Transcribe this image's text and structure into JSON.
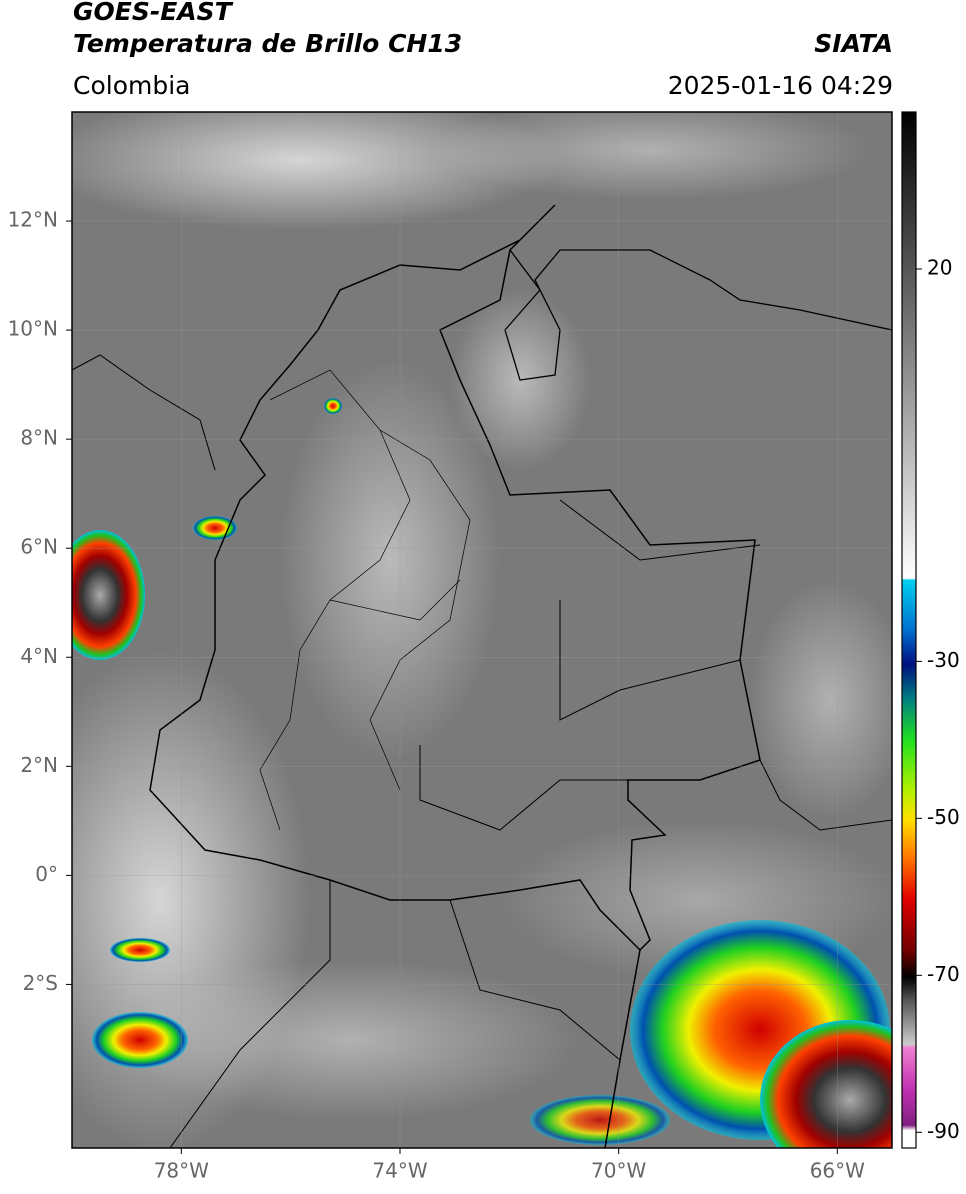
{
  "header": {
    "title": "GOES-EAST",
    "subtitle": "Temperatura de Brillo CH13",
    "source": "SIATA",
    "region": "Colombia",
    "datetime": "2025-01-16 04:29"
  },
  "map": {
    "xlim": [
      -80,
      -65
    ],
    "ylim": [
      -5,
      14
    ],
    "xticks": [
      {
        "value": -78,
        "label": "78°W"
      },
      {
        "value": -74,
        "label": "74°W"
      },
      {
        "value": -70,
        "label": "70°W"
      },
      {
        "value": -66,
        "label": "66°W"
      }
    ],
    "yticks": [
      {
        "value": 12,
        "label": "12°N"
      },
      {
        "value": 10,
        "label": "10°N"
      },
      {
        "value": 8,
        "label": "8°N"
      },
      {
        "value": 6,
        "label": "6°N"
      },
      {
        "value": 4,
        "label": "4°N"
      },
      {
        "value": 2,
        "label": "2°N"
      },
      {
        "value": 0,
        "label": "0°"
      },
      {
        "value": -2,
        "label": "2°S"
      }
    ],
    "grid": true
  },
  "colorbar": {
    "lim": [
      -92,
      40
    ],
    "ticks": [
      20,
      -30,
      -50,
      -70,
      -90
    ]
  }
}
